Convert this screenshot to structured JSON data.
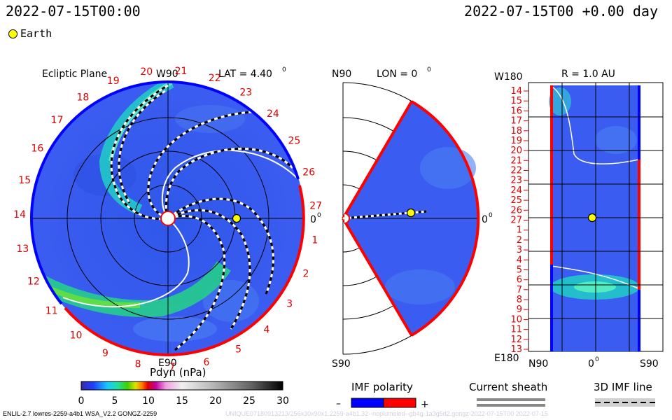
{
  "header": {
    "left_title": "2022-07-15T00:00",
    "right_title": "2022-07-15T00 +0.00 day"
  },
  "legend": {
    "earth_label": "Earth",
    "earth_color": "#ffff00"
  },
  "ecliptic_panel": {
    "title": "Ecliptic Plane",
    "top_label": "W90",
    "bottom_label": "E90",
    "right_label": "0",
    "lat_text": "LAT = 4.40",
    "lat_superscript": "0",
    "longitude_ticks": [
      "19",
      "20",
      "21",
      "22",
      "23",
      "24",
      "25",
      "26",
      "27",
      "1",
      "2",
      "3",
      "4",
      "5",
      "6",
      "7",
      "8",
      "9",
      "10",
      "11",
      "12",
      "13",
      "14",
      "15",
      "16",
      "17",
      "18"
    ]
  },
  "meridional_panel": {
    "top_label": "N90",
    "bottom_label": "S90",
    "right_label": "0",
    "lon_text": "LON = 0",
    "lon_superscript": "0"
  },
  "radial_panel": {
    "top_left_label": "W180",
    "bottom_left_label": "E180",
    "title": "R = 1.0 AU",
    "bottom_labels": [
      "N90",
      "0",
      "S90"
    ],
    "row_ticks": [
      "14",
      "15",
      "16",
      "17",
      "18",
      "19",
      "20",
      "21",
      "22",
      "23",
      "24",
      "25",
      "26",
      "27",
      "1",
      "2",
      "3",
      "4",
      "5",
      "6",
      "7",
      "8",
      "9",
      "10",
      "11",
      "12",
      "13"
    ]
  },
  "colorbar": {
    "title": "Pdyn (nPa)",
    "tick_labels": [
      "0",
      "5",
      "10",
      "15",
      "20",
      "25",
      "30"
    ]
  },
  "imf_polarity": {
    "title": "IMF polarity",
    "minus": "–",
    "plus": "+",
    "neg_color": "#0000ff",
    "pos_color": "#ff0000"
  },
  "current_sheath": {
    "title": "Current sheath"
  },
  "imf_line": {
    "title": "3D IMF line"
  },
  "footer": {
    "text": "ENLIL-2.7 lowres-2259-a4b1 WSA_V2.2 GONGZ-2259",
    "faint": "UNIQUE07180913213/256x30x90x1.2259-a4b1.32--noplumeled--gb4g-1a3g5d2.gongz-2022-07-15T00    2022-07-15"
  },
  "colors": {
    "background_fluid": "#3355ee",
    "high_density": "#00dd88",
    "ring": "#000000"
  }
}
